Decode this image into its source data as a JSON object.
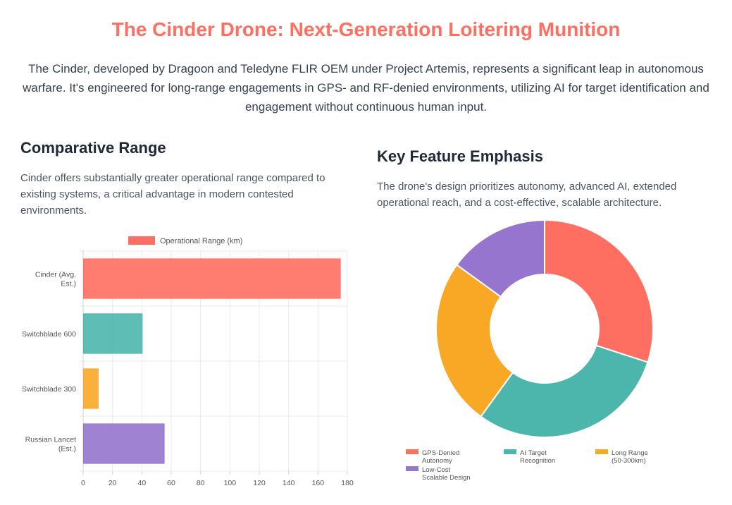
{
  "header": {
    "title": "The Cinder Drone: Next-Generation Loitering Munition",
    "intro": "The Cinder, developed by Dragoon and Teledyne FLIR OEM under Project Artemis, represents a significant leap in autonomous warfare. It's engineered for long-range engagements in GPS- and RF-denied environments, utilizing AI for target identification and engagement without continuous human input."
  },
  "range_section": {
    "heading": "Comparative Range",
    "description": "Cinder offers substantially greater operational range compared to existing systems, a critical advantage in modern contested environments."
  },
  "feature_section": {
    "heading": "Key Feature Emphasis",
    "description": "The drone's design prioritizes autonomy, advanced AI, extended operational reach, and a cost-effective, scalable architecture."
  },
  "chart_data": [
    {
      "type": "bar",
      "orientation": "horizontal",
      "categories": [
        [
          "Cinder (Avg.",
          "Est.)"
        ],
        [
          "Switchblade 600"
        ],
        [
          "Switchblade 300"
        ],
        [
          "Russian Lancet",
          "(Est.)"
        ]
      ],
      "series": [
        {
          "name": "Operational Range (km)",
          "values": [
            175,
            40,
            10,
            55
          ]
        }
      ],
      "colors": [
        "#ff6f61",
        "#4db6ac",
        "#f9a826",
        "#9575cd"
      ],
      "xlim": [
        0,
        180
      ],
      "xticks": [
        "0",
        "20",
        "40",
        "60",
        "80",
        "100",
        "120",
        "140",
        "160",
        "180"
      ],
      "legend": "top",
      "grid": true
    },
    {
      "type": "pie",
      "style": "doughnut",
      "labels": [
        [
          "GPS-Denied",
          "Autonomy"
        ],
        [
          "AI Target",
          "Recognition"
        ],
        [
          "Long Range",
          "(50-300km)"
        ],
        [
          "Low-Cost",
          "Scalable Design"
        ]
      ],
      "values": [
        30,
        30,
        25,
        15
      ],
      "colors": [
        "#ff6f61",
        "#4db6ac",
        "#f9a826",
        "#9575cd"
      ],
      "legend": "bottom"
    }
  ]
}
